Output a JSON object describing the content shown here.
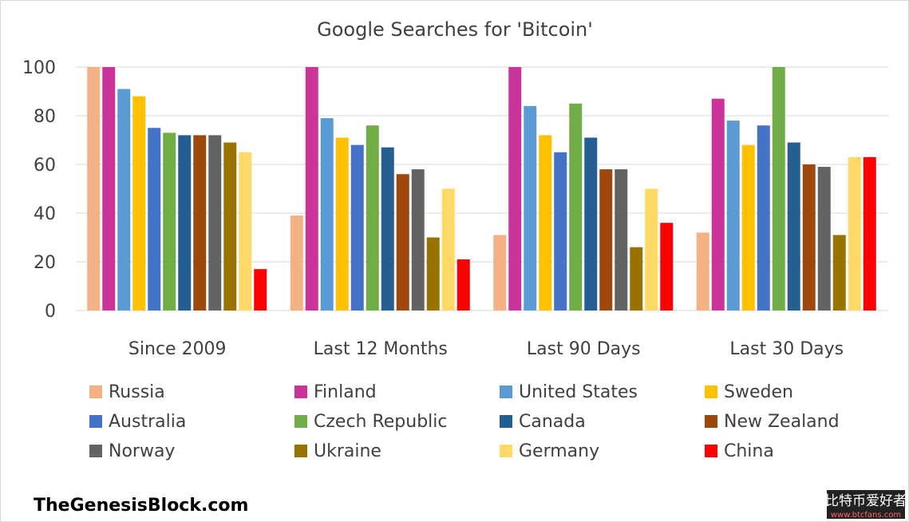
{
  "chart_data": {
    "type": "bar",
    "title": "Google Searches for 'Bitcoin'",
    "categories": [
      "Since 2009",
      "Last 12 Months",
      "Last 90 Days",
      "Last 30 Days"
    ],
    "series": [
      {
        "name": "Russia",
        "color": "#f4b183",
        "values": [
          100,
          39,
          31,
          32
        ]
      },
      {
        "name": "Finland",
        "color": "#cc3399",
        "values": [
          100,
          100,
          100,
          87
        ]
      },
      {
        "name": "United States",
        "color": "#5b9bd5",
        "values": [
          91,
          79,
          84,
          78
        ]
      },
      {
        "name": "Sweden",
        "color": "#ffc000",
        "values": [
          88,
          71,
          72,
          68
        ]
      },
      {
        "name": "Australia",
        "color": "#4472c4",
        "values": [
          75,
          68,
          65,
          76
        ]
      },
      {
        "name": "Czech Republic",
        "color": "#70ad47",
        "values": [
          73,
          76,
          85,
          100
        ]
      },
      {
        "name": "Canada",
        "color": "#255e91",
        "values": [
          72,
          67,
          71,
          69
        ]
      },
      {
        "name": "New Zealand",
        "color": "#9e480e",
        "values": [
          72,
          56,
          58,
          60
        ]
      },
      {
        "name": "Norway",
        "color": "#636363",
        "values": [
          72,
          58,
          58,
          59
        ]
      },
      {
        "name": "Ukraine",
        "color": "#997300",
        "values": [
          69,
          30,
          26,
          31
        ]
      },
      {
        "name": "Germany",
        "color": "#ffd966",
        "values": [
          65,
          50,
          50,
          63
        ]
      },
      {
        "name": "China",
        "color": "#ff0000",
        "values": [
          17,
          21,
          36,
          63
        ]
      }
    ],
    "ylim": [
      0,
      100
    ],
    "yticks": [
      0,
      20,
      40,
      60,
      80,
      100
    ],
    "grid": true,
    "legend": "bottom"
  },
  "footer": {
    "source": "TheGenesisBlock.com",
    "watermark": [
      "比特币爱好者",
      "www.btcfans.com"
    ]
  }
}
